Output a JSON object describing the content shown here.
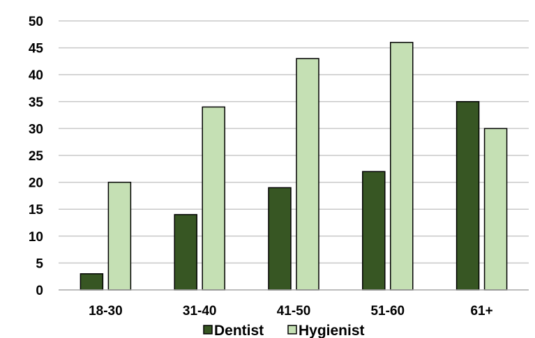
{
  "chart_data": {
    "type": "bar",
    "categories": [
      "18-30",
      "31-40",
      "41-50",
      "51-60",
      "61+"
    ],
    "series": [
      {
        "name": "Dentist",
        "color": "#375623",
        "values": [
          3,
          14,
          19,
          22,
          35
        ]
      },
      {
        "name": "Hygienist",
        "color": "#c5e0b4",
        "values": [
          20,
          34,
          43,
          46,
          30
        ]
      }
    ],
    "yticks": [
      "0",
      "5",
      "10",
      "15",
      "20",
      "25",
      "30",
      "35",
      "40",
      "45",
      "50"
    ],
    "ylim": [
      0,
      50
    ],
    "ytick_step": 5,
    "grid": true,
    "legend": "bottom",
    "title": "",
    "xlabel": "",
    "ylabel": ""
  }
}
